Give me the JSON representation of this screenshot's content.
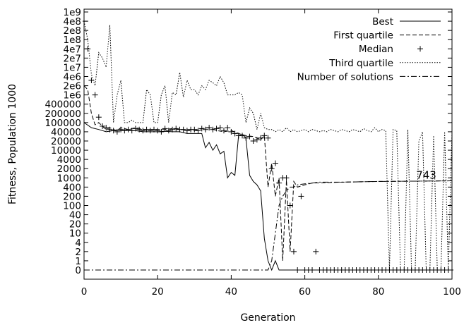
{
  "chart_data": {
    "type": "line",
    "xlabel": "Generation",
    "ylabel": "Fitness, Population 1000",
    "xlim": [
      0,
      100
    ],
    "x_ticks": [
      0,
      20,
      40,
      60,
      80,
      100
    ],
    "y_scale": "symlog",
    "y_ticks": [
      "0",
      "1",
      "2",
      "4",
      "10",
      "20",
      "40",
      "100",
      "200",
      "400",
      "1000",
      "2000",
      "4000",
      "10000",
      "20000",
      "40000",
      "100000",
      "200000",
      "400000",
      "1e6",
      "2e6",
      "4e6",
      "1e7",
      "2e7",
      "4e7",
      "1e8",
      "2e8",
      "4e8",
      "1e9"
    ],
    "grid": false,
    "legend_position": "top-right",
    "annotations": [
      {
        "text": "743",
        "x": 93,
        "y": 743
      }
    ],
    "series": [
      {
        "name": "Best",
        "style": "solid",
        "x": [
          0,
          2,
          4,
          6,
          8,
          10,
          12,
          14,
          16,
          18,
          20,
          22,
          24,
          26,
          28,
          30,
          32,
          33,
          34,
          35,
          36,
          37,
          38,
          39,
          40,
          41,
          42,
          43,
          44,
          45,
          46,
          47,
          48,
          49,
          50,
          51,
          52,
          53,
          54,
          56,
          60,
          70,
          80,
          90,
          100
        ],
        "y": [
          100000,
          60000,
          50000,
          40000,
          45000,
          45000,
          45000,
          45000,
          40000,
          40000,
          40000,
          42000,
          40000,
          40000,
          35000,
          35000,
          35000,
          12000,
          18000,
          10000,
          15000,
          7000,
          9000,
          1000,
          1500,
          1200,
          30000,
          33000,
          25000,
          1200,
          700,
          500,
          300,
          6,
          1,
          0,
          1,
          0,
          0,
          0,
          0,
          0,
          0,
          0,
          0
        ]
      },
      {
        "name": "First quartile",
        "style": "dashed",
        "x": [
          0,
          1,
          2,
          3,
          4,
          5,
          6,
          7,
          8,
          9,
          10,
          12,
          14,
          16,
          18,
          20,
          22,
          24,
          26,
          28,
          30,
          32,
          34,
          36,
          38,
          40,
          42,
          44,
          46,
          48,
          49,
          50,
          51,
          52,
          53,
          54,
          55,
          56,
          57,
          58,
          60,
          62,
          70,
          80,
          90,
          100
        ],
        "y": [
          2000000,
          1500000,
          200000,
          80000,
          100000,
          70000,
          50000,
          60000,
          50000,
          45000,
          60000,
          50000,
          60000,
          50000,
          50000,
          50000,
          50000,
          55000,
          50000,
          50000,
          45000,
          55000,
          60000,
          45000,
          40000,
          45000,
          35000,
          30000,
          28000,
          22000,
          30000,
          400,
          3000,
          200,
          1000,
          1,
          800,
          2,
          700,
          400,
          500,
          600,
          650,
          700,
          720,
          743
        ]
      },
      {
        "name": "Median",
        "style": "markers",
        "x": [
          0,
          1,
          2,
          3,
          4,
          5,
          6,
          7,
          8,
          9,
          10,
          11,
          12,
          13,
          14,
          15,
          16,
          17,
          18,
          19,
          20,
          21,
          22,
          23,
          24,
          25,
          26,
          27,
          28,
          29,
          30,
          31,
          32,
          33,
          34,
          35,
          36,
          37,
          38,
          39,
          40,
          41,
          42,
          43,
          44,
          45,
          46,
          47,
          48,
          49,
          50,
          51,
          52,
          53,
          54,
          55,
          56,
          57,
          58,
          59,
          60,
          61,
          62,
          63,
          64,
          65,
          66,
          67,
          68,
          69,
          70,
          71,
          72,
          73,
          74,
          75,
          76,
          77,
          78,
          79,
          80,
          81,
          82,
          83,
          84,
          85,
          86,
          87,
          88,
          89,
          90,
          91,
          92,
          93,
          94,
          95,
          96,
          97,
          98,
          99,
          100
        ],
        "y": [
          400000000,
          40000000,
          3000000,
          1000000,
          150000,
          70000,
          60000,
          50000,
          45000,
          40000,
          50000,
          45000,
          50000,
          45000,
          55000,
          50000,
          45000,
          50000,
          45000,
          50000,
          45000,
          40000,
          55000,
          45000,
          50000,
          55000,
          50000,
          50000,
          45000,
          50000,
          50000,
          45000,
          55000,
          50000,
          60000,
          50000,
          55000,
          60000,
          45000,
          60000,
          40000,
          35000,
          30000,
          30000,
          25000,
          28000,
          20000,
          22000,
          25000,
          30000,
          25000,
          2000,
          3000,
          600,
          1000,
          1000,
          100,
          2,
          0,
          200,
          0,
          0,
          0,
          2,
          0,
          0,
          0,
          0,
          0,
          0,
          0,
          0,
          0,
          0,
          0,
          0,
          0,
          0,
          0,
          0,
          0,
          0,
          0,
          0,
          0,
          0,
          0,
          0,
          0,
          0,
          0,
          0,
          0,
          0,
          0,
          0,
          0,
          0,
          0,
          0,
          0
        ]
      },
      {
        "name": "Third quartile",
        "style": "dotted",
        "x": [
          0,
          1,
          2,
          3,
          4,
          5,
          6,
          7,
          8,
          9,
          10,
          11,
          12,
          13,
          14,
          15,
          16,
          17,
          18,
          19,
          20,
          21,
          22,
          23,
          24,
          25,
          26,
          27,
          28,
          29,
          30,
          31,
          32,
          33,
          34,
          35,
          36,
          37,
          38,
          39,
          40,
          41,
          42,
          43,
          44,
          45,
          46,
          47,
          48,
          49,
          50,
          51,
          52,
          53,
          54,
          55,
          56,
          57,
          58,
          59,
          60,
          61,
          62,
          63,
          64,
          65,
          66,
          67,
          68,
          69,
          70,
          71,
          72,
          73,
          74,
          75,
          76,
          77,
          78,
          79,
          80,
          81,
          82,
          83,
          84,
          85,
          86,
          87,
          88,
          89,
          90,
          91,
          92,
          93,
          94,
          95,
          96,
          97,
          98,
          99,
          100
        ],
        "y": [
          400000000,
          100000000,
          5000000,
          2000000,
          30000000,
          20000000,
          10000000,
          300000000,
          100000,
          1000000,
          3000000,
          100000,
          100000,
          120000,
          100000,
          100000,
          100000,
          1500000,
          1000000,
          100000,
          100000,
          1000000,
          2000000,
          100000,
          1200000,
          1000000,
          6000000,
          800000,
          3000000,
          1500000,
          1500000,
          1000000,
          2000000,
          1500000,
          3000000,
          2500000,
          2000000,
          4000000,
          2500000,
          1000000,
          1000000,
          1000000,
          1200000,
          1000000,
          100000,
          300000,
          200000,
          50000,
          200000,
          60000,
          50000,
          50000,
          40000,
          50000,
          40000,
          60000,
          40000,
          50000,
          40000,
          45000,
          50000,
          40000,
          50000,
          45000,
          40000,
          45000,
          40000,
          50000,
          45000,
          40000,
          50000,
          45000,
          40000,
          50000,
          45000,
          40000,
          55000,
          45000,
          40000,
          60000,
          40000,
          50000,
          45000,
          0,
          50000,
          45000,
          0,
          0,
          50000,
          0,
          0,
          20000,
          40000,
          0,
          0,
          30000,
          0,
          0,
          40000,
          0,
          40000
        ]
      },
      {
        "name": "Number of solutions",
        "style": "dashdot",
        "x": [
          0,
          50,
          51,
          52,
          53,
          54,
          55,
          56,
          57,
          58,
          60,
          62,
          64,
          70,
          80,
          90,
          100
        ],
        "y": [
          0,
          0,
          1,
          10,
          100,
          200,
          300,
          400,
          400,
          500,
          550,
          600,
          650,
          650,
          700,
          720,
          743
        ]
      }
    ]
  }
}
